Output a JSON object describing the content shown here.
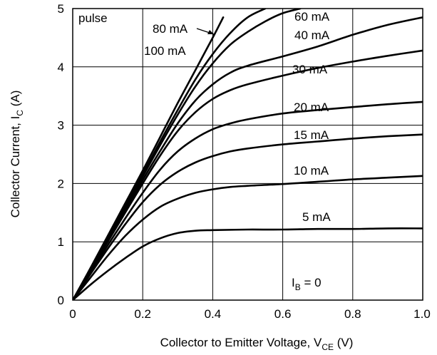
{
  "chart_data": {
    "type": "line",
    "title": "",
    "xlabel": "Collector to Emitter Voltage, V",
    "xlabel_sub": "CE",
    "xlabel_unit": " (V)",
    "ylabel": "Collector Current, I",
    "ylabel_sub": "C",
    "ylabel_unit": " (A)",
    "xlim": [
      0,
      1.0
    ],
    "ylim": [
      0,
      5
    ],
    "xticks": [
      "0",
      "0.2",
      "0.4",
      "0.6",
      "0.8",
      "1.0"
    ],
    "yticks": [
      "0",
      "1",
      "2",
      "3",
      "4",
      "5"
    ],
    "grid": true,
    "annotation": "pulse",
    "ib_label": "I",
    "ib_sub": "B",
    "ib_value": " = 0",
    "series": [
      {
        "name": "5 mA",
        "x": [
          0,
          0.05,
          0.1,
          0.15,
          0.2,
          0.25,
          0.3,
          0.35,
          0.4,
          0.5,
          0.6,
          0.7,
          0.8,
          0.9,
          1.0
        ],
        "y": [
          0,
          0.26,
          0.5,
          0.72,
          0.92,
          1.06,
          1.15,
          1.19,
          1.2,
          1.21,
          1.21,
          1.22,
          1.22,
          1.23,
          1.23
        ]
      },
      {
        "name": "10 mA",
        "x": [
          0,
          0.05,
          0.1,
          0.15,
          0.2,
          0.25,
          0.3,
          0.35,
          0.4,
          0.45,
          0.5,
          0.6,
          0.7,
          0.8,
          0.9,
          1.0
        ],
        "y": [
          0,
          0.38,
          0.76,
          1.1,
          1.38,
          1.6,
          1.74,
          1.84,
          1.9,
          1.94,
          1.96,
          1.99,
          2.03,
          2.07,
          2.1,
          2.13
        ]
      },
      {
        "name": "15 mA",
        "x": [
          0,
          0.05,
          0.1,
          0.15,
          0.2,
          0.25,
          0.3,
          0.35,
          0.4,
          0.45,
          0.5,
          0.6,
          0.7,
          0.8,
          0.9,
          1.0
        ],
        "y": [
          0,
          0.44,
          0.88,
          1.3,
          1.68,
          1.98,
          2.2,
          2.36,
          2.47,
          2.55,
          2.6,
          2.67,
          2.72,
          2.77,
          2.81,
          2.84
        ]
      },
      {
        "name": "20 mA",
        "x": [
          0,
          0.05,
          0.1,
          0.15,
          0.2,
          0.25,
          0.3,
          0.35,
          0.4,
          0.45,
          0.5,
          0.6,
          0.7,
          0.8,
          0.9,
          1.0
        ],
        "y": [
          0,
          0.47,
          0.94,
          1.4,
          1.84,
          2.24,
          2.55,
          2.77,
          2.93,
          3.03,
          3.1,
          3.2,
          3.26,
          3.31,
          3.36,
          3.4
        ]
      },
      {
        "name": "30 mA",
        "x": [
          0,
          0.05,
          0.1,
          0.15,
          0.2,
          0.25,
          0.3,
          0.35,
          0.4,
          0.45,
          0.5,
          0.6,
          0.7,
          0.8,
          0.9,
          1.0
        ],
        "y": [
          0,
          0.5,
          1.0,
          1.5,
          2.0,
          2.48,
          2.9,
          3.22,
          3.45,
          3.6,
          3.7,
          3.85,
          3.98,
          4.09,
          4.19,
          4.28
        ]
      },
      {
        "name": "40 mA",
        "x": [
          0,
          0.05,
          0.1,
          0.15,
          0.2,
          0.25,
          0.3,
          0.35,
          0.4,
          0.45,
          0.5,
          0.6,
          0.7,
          0.8,
          0.9,
          1.0
        ],
        "y": [
          0,
          0.5,
          1.02,
          1.54,
          2.06,
          2.56,
          3.03,
          3.42,
          3.7,
          3.9,
          4.02,
          4.18,
          4.35,
          4.55,
          4.72,
          4.85
        ]
      },
      {
        "name": "60 mA",
        "x": [
          0,
          0.05,
          0.1,
          0.15,
          0.2,
          0.25,
          0.3,
          0.35,
          0.4,
          0.45,
          0.5,
          0.55,
          0.6,
          0.65
        ],
        "y": [
          0,
          0.51,
          1.04,
          1.58,
          2.12,
          2.66,
          3.18,
          3.66,
          4.06,
          4.38,
          4.6,
          4.78,
          4.92,
          5.0
        ]
      },
      {
        "name": "80 mA",
        "x": [
          0,
          0.05,
          0.1,
          0.15,
          0.2,
          0.25,
          0.3,
          0.35,
          0.4,
          0.45,
          0.5,
          0.55
        ],
        "y": [
          0,
          0.52,
          1.06,
          1.6,
          2.16,
          2.72,
          3.26,
          3.78,
          4.22,
          4.58,
          4.85,
          5.0
        ]
      },
      {
        "name": "100 mA",
        "x": [
          0,
          0.05,
          0.1,
          0.15,
          0.2,
          0.25,
          0.3,
          0.35,
          0.4,
          0.43
        ],
        "y": [
          0,
          0.54,
          1.1,
          1.66,
          2.22,
          2.8,
          3.38,
          3.94,
          4.5,
          4.85
        ]
      }
    ]
  }
}
